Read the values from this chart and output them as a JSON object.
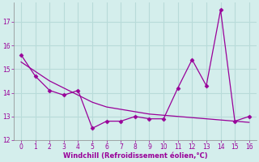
{
  "x": [
    0,
    1,
    2,
    3,
    4,
    5,
    6,
    7,
    8,
    9,
    10,
    11,
    12,
    13,
    14,
    15,
    16
  ],
  "y_data": [
    15.6,
    14.7,
    14.1,
    13.9,
    14.1,
    12.5,
    12.8,
    12.8,
    13.0,
    12.9,
    12.9,
    14.2,
    15.4,
    14.3,
    17.5,
    12.8,
    13.0
  ],
  "y_trend": [
    15.3,
    14.9,
    14.5,
    14.2,
    13.9,
    13.6,
    13.4,
    13.3,
    13.2,
    13.1,
    13.05,
    13.0,
    12.95,
    12.9,
    12.85,
    12.8,
    12.75
  ],
  "line_color": "#990099",
  "marker": "D",
  "marker_size": 2.5,
  "xlabel": "Windchill (Refroidissement éolien,°C)",
  "xlim": [
    -0.5,
    16.5
  ],
  "ylim": [
    12,
    17.8
  ],
  "yticks": [
    12,
    13,
    14,
    15,
    16,
    17
  ],
  "xticks": [
    0,
    1,
    2,
    3,
    4,
    5,
    6,
    7,
    8,
    9,
    10,
    11,
    12,
    13,
    14,
    15,
    16
  ],
  "bg_color": "#d4eeec",
  "grid_color": "#b8dbd9",
  "xlabel_color": "#990099",
  "tick_color": "#990099",
  "tick_fontsize": 5.5,
  "xlabel_fontsize": 6.0
}
